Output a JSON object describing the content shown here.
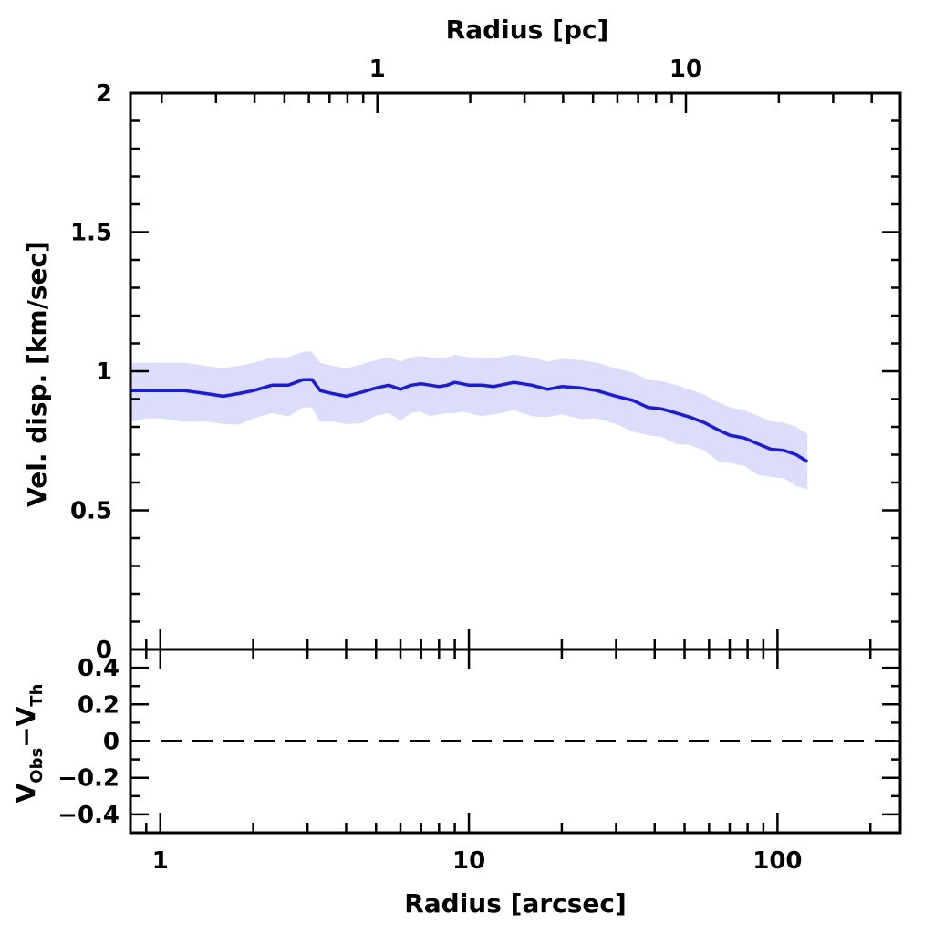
{
  "chart_data": {
    "type": "line",
    "top_panel": {
      "ylabel": "Vel. disp. [km/sec]",
      "ylim": [
        0,
        2
      ],
      "yticks": [
        0,
        0.5,
        1,
        1.5,
        2
      ],
      "ytick_labels": [
        "0",
        "0.5",
        "1",
        "1.5",
        "2"
      ],
      "series": [
        {
          "x": [
            0.8,
            0.9,
            1.0,
            1.2,
            1.4,
            1.6,
            1.8,
            2.0,
            2.3,
            2.6,
            2.9,
            3.1,
            3.3,
            3.6,
            4.0,
            4.5,
            5.0,
            5.5,
            6.0,
            6.5,
            7.0,
            7.5,
            8.0,
            8.5,
            9.0,
            9.5,
            10,
            11,
            12,
            14,
            16,
            18,
            20,
            23,
            26,
            30,
            34,
            38,
            42,
            47,
            52,
            58,
            64,
            70,
            78,
            86,
            95,
            105,
            115,
            125
          ],
          "y": [
            0.93,
            0.93,
            0.93,
            0.93,
            0.92,
            0.91,
            0.92,
            0.93,
            0.95,
            0.95,
            0.97,
            0.97,
            0.93,
            0.92,
            0.91,
            0.925,
            0.94,
            0.95,
            0.935,
            0.95,
            0.955,
            0.95,
            0.945,
            0.95,
            0.96,
            0.955,
            0.95,
            0.95,
            0.945,
            0.96,
            0.95,
            0.935,
            0.945,
            0.94,
            0.93,
            0.91,
            0.895,
            0.87,
            0.865,
            0.85,
            0.835,
            0.815,
            0.79,
            0.77,
            0.76,
            0.74,
            0.72,
            0.715,
            0.7,
            0.675
          ],
          "band_halfwidth": 0.1
        }
      ]
    },
    "bottom_panel": {
      "ylabel_main": "V",
      "ylabel_sub1": "Obs",
      "ylabel_minus": "−V",
      "ylabel_sub2": "Th",
      "ylim": [
        -0.5,
        0.5
      ],
      "yticks": [
        -0.4,
        -0.2,
        0,
        0.2,
        0.4
      ],
      "ytick_labels": [
        "−0.4",
        "−0.2",
        "0",
        "0.2",
        "0.4"
      ],
      "reference_line_y": 0
    },
    "x_axis_bottom": {
      "label": "Radius [arcsec]",
      "scale": "log",
      "xlim": [
        0.8,
        250
      ],
      "major_ticks": [
        1,
        10,
        100
      ],
      "tick_labels": [
        "1",
        "10",
        "100"
      ]
    },
    "x_axis_top": {
      "label": "Radius [pc]",
      "scale": "log",
      "major_ticks": [
        1,
        10
      ],
      "tick_labels": [
        "1",
        "10"
      ],
      "arcsec_per_pc": 5.05
    }
  }
}
